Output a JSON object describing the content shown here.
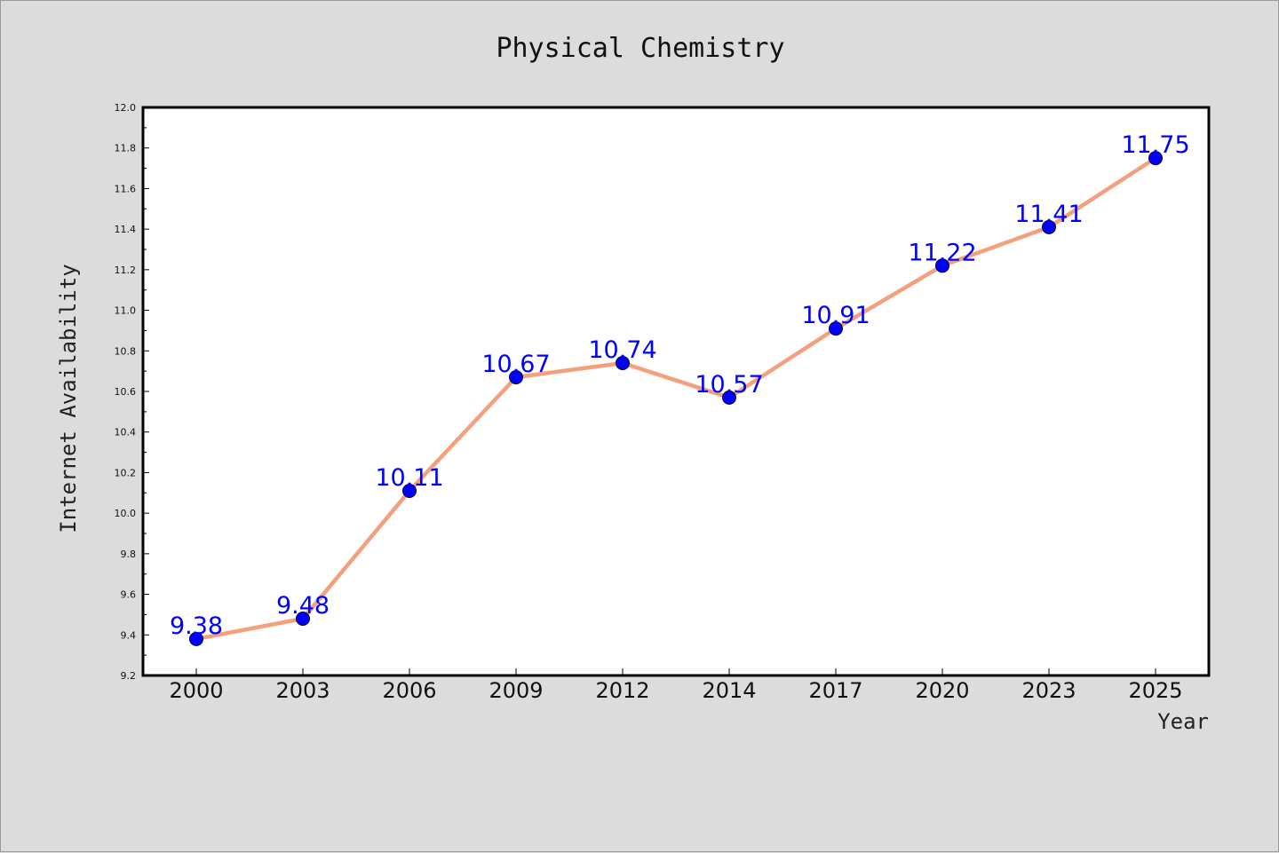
{
  "chart_data": {
    "type": "line",
    "title": "Physical Chemistry",
    "xlabel": "Year",
    "ylabel": "Internet Availability",
    "categories": [
      "2000",
      "2003",
      "2006",
      "2009",
      "2012",
      "2014",
      "2017",
      "2020",
      "2023",
      "2025"
    ],
    "series": [
      {
        "values": [
          9.38,
          9.48,
          10.11,
          10.67,
          10.74,
          10.57,
          10.91,
          11.22,
          11.41,
          11.75
        ]
      }
    ],
    "data_labels": [
      "9.38",
      "9.48",
      "10.11",
      "10.67",
      "10.74",
      "10.57",
      "10.91",
      "11.22",
      "11.41",
      "11.75"
    ],
    "ylim": [
      9.2,
      12.0
    ],
    "y_ticks": [
      "9.2",
      "9.4",
      "9.6",
      "9.8",
      "10.0",
      "10.2",
      "10.4",
      "10.6",
      "10.8",
      "11.0",
      "11.2",
      "11.4",
      "11.6",
      "11.8",
      "12.0"
    ],
    "grid": false,
    "legend": "none",
    "colors": {
      "line": "#f4a07c",
      "marker": "#0000ff",
      "marker_stroke": "#000033",
      "data_label": "#0000ff",
      "plot_background": "#ffffff",
      "figure_background": "#dcdcdc",
      "axes_border": "#000000"
    }
  }
}
